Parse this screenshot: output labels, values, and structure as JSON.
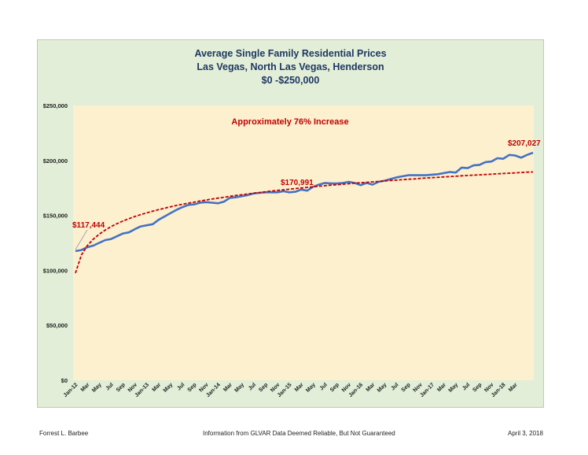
{
  "chart_data": {
    "type": "line",
    "title": [
      "Average Single Family Residential Prices",
      "Las Vegas, North Las Vegas, Henderson",
      "$0 -$250,000"
    ],
    "xlabel": "",
    "ylabel": "",
    "ylim": [
      0,
      250000
    ],
    "yticks": [
      "$0",
      "$50,000",
      "$100,000",
      "$150,000",
      "$200,000",
      "$250,000"
    ],
    "ytick_values": [
      0,
      50000,
      100000,
      150000,
      200000,
      250000
    ],
    "x_tick_labels": [
      "Jan-12",
      "Mar",
      "May",
      "Jul",
      "Sep",
      "Nov",
      "Jan-13",
      "Mar",
      "May",
      "Jul",
      "Sep",
      "Nov",
      "Jan-14",
      "Mar",
      "May",
      "Jul",
      "Sep",
      "Nov",
      "Jan-15",
      "Mar",
      "May",
      "Jul",
      "Sep",
      "Nov",
      "Jan-16",
      "Mar",
      "May",
      "Jul",
      "Sep",
      "Nov",
      "Jan-17",
      "Mar",
      "May",
      "Jul",
      "Sep",
      "Nov",
      "Jan-18",
      "Mar"
    ],
    "grid": false,
    "series": [
      {
        "kind": "actual",
        "color": "#4472c4",
        "values": [
          117444,
          118500,
          121000,
          122500,
          125000,
          127500,
          128500,
          131000,
          133500,
          134500,
          137500,
          140000,
          141000,
          142000,
          146000,
          149000,
          152000,
          155000,
          157500,
          159500,
          160000,
          161500,
          162000,
          161500,
          161000,
          162500,
          166000,
          166500,
          167500,
          168500,
          170000,
          170500,
          171000,
          170991,
          171000,
          172000,
          171000,
          171500,
          173500,
          172500,
          176000,
          178000,
          179500,
          179000,
          179000,
          179500,
          180500,
          179500,
          177500,
          179500,
          178000,
          180500,
          181500,
          183000,
          184500,
          185500,
          186500,
          186500,
          186500,
          186500,
          187000,
          187500,
          188500,
          189500,
          189000,
          193500,
          193000,
          195500,
          196000,
          198500,
          199000,
          202000,
          201500,
          205000,
          204500,
          202500,
          205000,
          207027
        ]
      },
      {
        "kind": "trend",
        "color": "#c00000",
        "values": [
          97500,
          114000,
          122500,
          128400,
          132900,
          136600,
          139800,
          142500,
          144900,
          147000,
          149000,
          150700,
          152300,
          153800,
          155200,
          156500,
          157800,
          159000,
          160100,
          161100,
          162100,
          163100,
          164000,
          164900,
          165700,
          166500,
          167300,
          168100,
          168800,
          169500,
          170200,
          170800,
          171500,
          172100,
          172700,
          173300,
          173800,
          174400,
          174900,
          175500,
          176000,
          176500,
          177000,
          177500,
          177900,
          178400,
          178800,
          179300,
          179700,
          180100,
          180500,
          180900,
          181300,
          181700,
          182100,
          182500,
          182900,
          183200,
          183600,
          184000,
          184300,
          184600,
          185000,
          185300,
          185600,
          186000,
          186300,
          186600,
          186900,
          187200,
          187500,
          187800,
          188100,
          188400,
          188700,
          189000,
          189300,
          189500
        ]
      }
    ],
    "annotations": [
      {
        "text": "Approximately 76% Increase",
        "color": "#c00000"
      },
      {
        "text": "$117,444",
        "color": "#c00000",
        "index": 0
      },
      {
        "text": "$170,991",
        "color": "#c00000",
        "index": 33
      },
      {
        "text": "$207,027",
        "color": "#c00000",
        "index": 77
      }
    ]
  },
  "footer": {
    "left": "Forrest L. Barbee",
    "center": "Information  from GLVAR Data Deemed Reliable, But Not Guaranteed",
    "right": "April 3, 2018"
  },
  "colors": {
    "panel_bg": "#e2eed7",
    "plot_bg": "#fdf0cf",
    "title": "#1f3864"
  }
}
